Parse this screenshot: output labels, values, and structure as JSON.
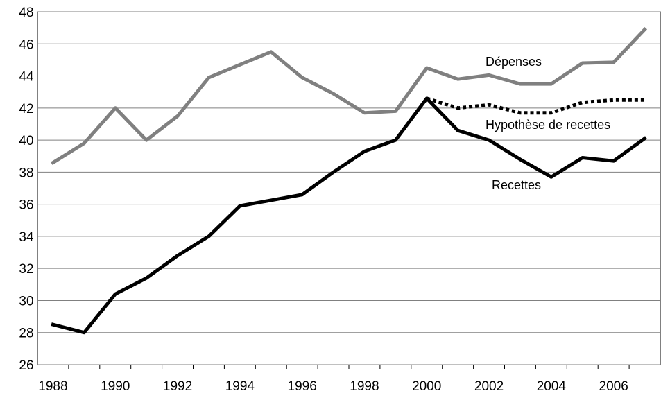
{
  "chart_data": {
    "type": "line",
    "x": [
      1988,
      1989,
      1990,
      1991,
      1992,
      1993,
      1994,
      1995,
      1996,
      1997,
      1998,
      1999,
      2000,
      2001,
      2002,
      2003,
      2004,
      2005,
      2006,
      2007
    ],
    "ylim": [
      26,
      48
    ],
    "xlim": [
      1987.5,
      2007.5
    ],
    "y_ticks": [
      26,
      28,
      30,
      32,
      34,
      36,
      38,
      40,
      42,
      44,
      46,
      48
    ],
    "x_ticks": [
      1988,
      1990,
      1992,
      1994,
      1996,
      1998,
      2000,
      2002,
      2004,
      2006
    ],
    "grid": "horizontal",
    "series": [
      {
        "name": "Dépenses",
        "color": "#808080",
        "style": "solid",
        "x": [
          1988,
          1989,
          1990,
          1991,
          1992,
          1993,
          1994,
          1995,
          1996,
          1997,
          1998,
          1999,
          2000,
          2001,
          2002,
          2003,
          2004,
          2005,
          2006,
          2007
        ],
        "values": [
          38.6,
          39.8,
          42.0,
          40.0,
          41.5,
          43.9,
          44.7,
          45.5,
          43.9,
          42.9,
          41.7,
          41.8,
          44.5,
          43.8,
          44.05,
          43.5,
          43.5,
          44.8,
          44.85,
          46.9
        ]
      },
      {
        "name": "Hypothèse de recettes",
        "color": "#000000",
        "style": "dotted",
        "x": [
          2000,
          2001,
          2002,
          2003,
          2004,
          2005,
          2006,
          2007
        ],
        "values": [
          42.6,
          42.0,
          42.2,
          41.7,
          41.7,
          42.35,
          42.5,
          42.5
        ]
      },
      {
        "name": "Recettes",
        "color": "#000000",
        "style": "solid",
        "x": [
          1988,
          1989,
          1990,
          1991,
          1992,
          1993,
          1994,
          1995,
          1996,
          1997,
          1998,
          1999,
          2000,
          2001,
          2002,
          2003,
          2004,
          2005,
          2006,
          2007
        ],
        "values": [
          28.5,
          28.0,
          30.4,
          31.4,
          32.8,
          34.0,
          35.9,
          36.25,
          36.6,
          38.0,
          39.3,
          40.0,
          42.6,
          40.6,
          40.0,
          38.8,
          37.7,
          38.9,
          38.7,
          40.1
        ]
      }
    ]
  }
}
